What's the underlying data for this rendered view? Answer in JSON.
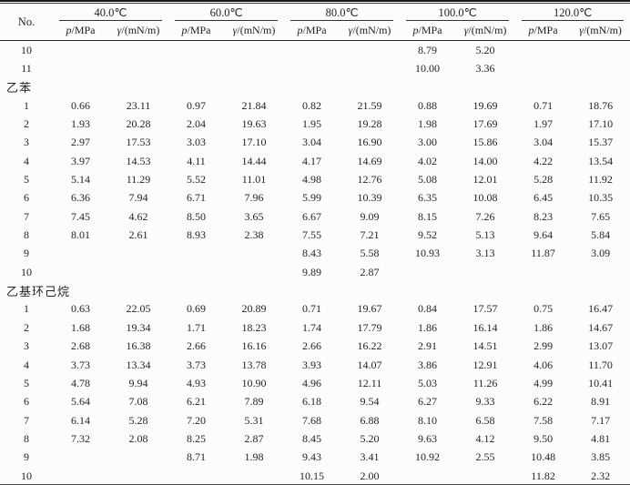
{
  "table": {
    "no_header": "No.",
    "temp_groups": [
      "40.0℃",
      "60.0℃",
      "80.0℃",
      "100.0℃",
      "120.0℃"
    ],
    "subheaders": {
      "p_sym": "p",
      "p_unit": "/MPa",
      "g_sym": "γ",
      "g_unit": "/(mN/m)"
    },
    "rows": [
      {
        "type": "data",
        "no": "10",
        "cells": [
          "",
          "",
          "",
          "",
          "",
          "",
          "8.79",
          "5.20",
          "",
          ""
        ]
      },
      {
        "type": "data",
        "no": "11",
        "cells": [
          "",
          "",
          "",
          "",
          "",
          "",
          "10.00",
          "3.36",
          "",
          ""
        ]
      },
      {
        "type": "section",
        "label": "乙苯"
      },
      {
        "type": "data",
        "no": "1",
        "cells": [
          "0.66",
          "23.11",
          "0.97",
          "21.84",
          "0.82",
          "21.59",
          "0.88",
          "19.69",
          "0.71",
          "18.76"
        ]
      },
      {
        "type": "data",
        "no": "2",
        "cells": [
          "1.93",
          "20.28",
          "2.04",
          "19.63",
          "1.95",
          "19.28",
          "1.98",
          "17.69",
          "1.97",
          "17.10"
        ]
      },
      {
        "type": "data",
        "no": "3",
        "cells": [
          "2.97",
          "17.53",
          "3.03",
          "17.10",
          "3.04",
          "16.90",
          "3.00",
          "15.86",
          "3.04",
          "15.37"
        ]
      },
      {
        "type": "data",
        "no": "4",
        "cells": [
          "3.97",
          "14.53",
          "4.11",
          "14.44",
          "4.17",
          "14.69",
          "4.02",
          "14.00",
          "4.22",
          "13.54"
        ]
      },
      {
        "type": "data",
        "no": "5",
        "cells": [
          "5.14",
          "11.29",
          "5.52",
          "11.01",
          "4.98",
          "12.76",
          "5.08",
          "12.01",
          "5.28",
          "11.92"
        ]
      },
      {
        "type": "data",
        "no": "6",
        "cells": [
          "6.36",
          "7.94",
          "6.71",
          "7.96",
          "5.99",
          "10.39",
          "6.35",
          "10.08",
          "6.45",
          "10.35"
        ]
      },
      {
        "type": "data",
        "no": "7",
        "cells": [
          "7.45",
          "4.62",
          "8.50",
          "3.65",
          "6.67",
          "9.09",
          "8.15",
          "7.26",
          "8.23",
          "7.65"
        ]
      },
      {
        "type": "data",
        "no": "8",
        "cells": [
          "8.01",
          "2.61",
          "8.93",
          "2.38",
          "7.55",
          "7.21",
          "9.52",
          "5.13",
          "9.64",
          "5.84"
        ]
      },
      {
        "type": "data",
        "no": "9",
        "cells": [
          "",
          "",
          "",
          "",
          "8.43",
          "5.58",
          "10.93",
          "3.13",
          "11.87",
          "3.09"
        ]
      },
      {
        "type": "data",
        "no": "10",
        "cells": [
          "",
          "",
          "",
          "",
          "9.89",
          "2.87",
          "",
          "",
          "",
          ""
        ]
      },
      {
        "type": "section",
        "label": "乙基环己烷"
      },
      {
        "type": "data",
        "no": "1",
        "cells": [
          "0.63",
          "22.05",
          "0.69",
          "20.89",
          "0.71",
          "19.67",
          "0.84",
          "17.57",
          "0.75",
          "16.47"
        ]
      },
      {
        "type": "data",
        "no": "2",
        "cells": [
          "1.68",
          "19.34",
          "1.71",
          "18.23",
          "1.74",
          "17.79",
          "1.86",
          "16.14",
          "1.86",
          "14.67"
        ]
      },
      {
        "type": "data",
        "no": "3",
        "cells": [
          "2.68",
          "16.38",
          "2.66",
          "16.16",
          "2.66",
          "16.22",
          "2.91",
          "14.51",
          "2.99",
          "13.07"
        ]
      },
      {
        "type": "data",
        "no": "4",
        "cells": [
          "3.73",
          "13.34",
          "3.73",
          "13.78",
          "3.93",
          "14.07",
          "3.86",
          "12.91",
          "4.06",
          "11.70"
        ]
      },
      {
        "type": "data",
        "no": "5",
        "cells": [
          "4.78",
          "9.94",
          "4.93",
          "10.90",
          "4.96",
          "12.11",
          "5.03",
          "11.26",
          "4.99",
          "10.41"
        ]
      },
      {
        "type": "data",
        "no": "6",
        "cells": [
          "5.64",
          "7.08",
          "6.21",
          "7.89",
          "6.18",
          "9.54",
          "6.27",
          "9.33",
          "6.22",
          "8.91"
        ]
      },
      {
        "type": "data",
        "no": "7",
        "cells": [
          "6.14",
          "5.28",
          "7.20",
          "5.31",
          "7.68",
          "6.88",
          "8.10",
          "6.58",
          "7.58",
          "7.17"
        ]
      },
      {
        "type": "data",
        "no": "8",
        "cells": [
          "7.32",
          "2.08",
          "8.25",
          "2.87",
          "8.45",
          "5.20",
          "9.63",
          "4.12",
          "9.50",
          "4.81"
        ]
      },
      {
        "type": "data",
        "no": "9",
        "cells": [
          "",
          "",
          "8.71",
          "1.98",
          "9.43",
          "3.41",
          "10.92",
          "2.55",
          "10.48",
          "3.85"
        ]
      },
      {
        "type": "data",
        "no": "10",
        "cells": [
          "",
          "",
          "",
          "",
          "10.15",
          "2.00",
          "",
          "",
          "11.82",
          "2.32"
        ]
      }
    ]
  }
}
